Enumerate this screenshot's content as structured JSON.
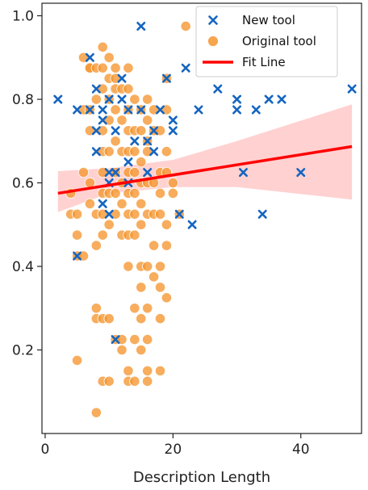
{
  "chart_data": {
    "type": "scatter",
    "title": "",
    "xlabel": "Description Length",
    "ylabel": "",
    "xlim": [
      -0.5,
      49.5
    ],
    "ylim": [
      0.0,
      1.03
    ],
    "xticks": [
      0,
      20,
      40
    ],
    "yticks": [
      0.2,
      0.4,
      0.6,
      0.8,
      1.0
    ],
    "grid": false,
    "legend_position": "top-right",
    "colors": {
      "new_tool": "#1565C0",
      "original_tool": "#F5962F",
      "fit_line": "#FF0000",
      "ci_band": "#FFB3B3"
    },
    "series": [
      {
        "name": "New tool",
        "marker": "x",
        "points": [
          [
            2,
            0.8
          ],
          [
            5,
            0.775
          ],
          [
            7,
            0.9
          ],
          [
            7,
            0.775
          ],
          [
            8,
            0.825
          ],
          [
            8,
            0.725
          ],
          [
            9,
            0.75
          ],
          [
            10,
            0.8
          ],
          [
            9,
            0.775
          ],
          [
            8,
            0.675
          ],
          [
            10,
            0.625
          ],
          [
            10,
            0.6
          ],
          [
            11,
            0.625
          ],
          [
            9,
            0.55
          ],
          [
            10,
            0.525
          ],
          [
            11,
            0.725
          ],
          [
            12,
            0.8
          ],
          [
            12,
            0.85
          ],
          [
            13,
            0.775
          ],
          [
            13,
            0.65
          ],
          [
            13,
            0.6
          ],
          [
            14,
            0.7
          ],
          [
            15,
            0.975
          ],
          [
            15,
            0.775
          ],
          [
            16,
            0.7
          ],
          [
            16,
            0.625
          ],
          [
            17,
            0.725
          ],
          [
            17,
            0.675
          ],
          [
            18,
            0.775
          ],
          [
            19,
            0.85
          ],
          [
            20,
            0.725
          ],
          [
            20,
            0.75
          ],
          [
            21,
            0.525
          ],
          [
            22,
            0.875
          ],
          [
            23,
            0.5
          ],
          [
            24,
            0.775
          ],
          [
            27,
            0.825
          ],
          [
            30,
            0.8
          ],
          [
            30,
            0.775
          ],
          [
            31,
            0.625
          ],
          [
            33,
            0.775
          ],
          [
            34,
            0.525
          ],
          [
            35,
            0.8
          ],
          [
            37,
            0.8
          ],
          [
            40,
            0.625
          ],
          [
            48,
            0.825
          ],
          [
            5,
            0.425
          ],
          [
            11,
            0.225
          ]
        ]
      },
      {
        "name": "Original tool",
        "marker": "o",
        "points": [
          [
            4,
            0.575
          ],
          [
            4,
            0.525
          ],
          [
            5,
            0.525
          ],
          [
            5,
            0.475
          ],
          [
            5,
            0.425
          ],
          [
            5,
            0.175
          ],
          [
            6,
            0.625
          ],
          [
            6,
            0.775
          ],
          [
            6,
            0.9
          ],
          [
            6,
            0.425
          ],
          [
            7,
            0.875
          ],
          [
            7,
            0.775
          ],
          [
            7,
            0.6
          ],
          [
            7,
            0.55
          ],
          [
            7,
            0.725
          ],
          [
            7,
            0.875
          ],
          [
            8,
            0.875
          ],
          [
            8,
            0.8
          ],
          [
            8,
            0.525
          ],
          [
            8,
            0.45
          ],
          [
            8,
            0.3
          ],
          [
            8,
            0.275
          ],
          [
            8,
            0.05
          ],
          [
            9,
            0.925
          ],
          [
            9,
            0.875
          ],
          [
            9,
            0.825
          ],
          [
            9,
            0.725
          ],
          [
            9,
            0.675
          ],
          [
            9,
            0.625
          ],
          [
            9,
            0.575
          ],
          [
            9,
            0.525
          ],
          [
            9,
            0.275
          ],
          [
            9,
            0.125
          ],
          [
            9,
            0.475
          ],
          [
            10,
            0.9
          ],
          [
            10,
            0.85
          ],
          [
            10,
            0.8
          ],
          [
            10,
            0.75
          ],
          [
            10,
            0.675
          ],
          [
            10,
            0.575
          ],
          [
            10,
            0.5
          ],
          [
            10,
            0.275
          ],
          [
            10,
            0.125
          ],
          [
            11,
            0.875
          ],
          [
            11,
            0.825
          ],
          [
            11,
            0.775
          ],
          [
            11,
            0.7
          ],
          [
            11,
            0.625
          ],
          [
            11,
            0.575
          ],
          [
            11,
            0.525
          ],
          [
            11,
            0.225
          ],
          [
            11,
            0.85
          ],
          [
            12,
            0.825
          ],
          [
            12,
            0.75
          ],
          [
            12,
            0.675
          ],
          [
            12,
            0.6
          ],
          [
            12,
            0.55
          ],
          [
            12,
            0.475
          ],
          [
            12,
            0.225
          ],
          [
            12,
            0.2
          ],
          [
            13,
            0.875
          ],
          [
            13,
            0.825
          ],
          [
            13,
            0.775
          ],
          [
            13,
            0.725
          ],
          [
            13,
            0.675
          ],
          [
            13,
            0.625
          ],
          [
            13,
            0.575
          ],
          [
            13,
            0.525
          ],
          [
            13,
            0.475
          ],
          [
            13,
            0.4
          ],
          [
            13,
            0.15
          ],
          [
            13,
            0.125
          ],
          [
            14,
            0.8
          ],
          [
            14,
            0.725
          ],
          [
            14,
            0.675
          ],
          [
            14,
            0.625
          ],
          [
            14,
            0.575
          ],
          [
            14,
            0.525
          ],
          [
            14,
            0.475
          ],
          [
            14,
            0.3
          ],
          [
            14,
            0.225
          ],
          [
            14,
            0.125
          ],
          [
            15,
            0.775
          ],
          [
            15,
            0.725
          ],
          [
            15,
            0.65
          ],
          [
            15,
            0.6
          ],
          [
            15,
            0.55
          ],
          [
            15,
            0.5
          ],
          [
            15,
            0.4
          ],
          [
            15,
            0.35
          ],
          [
            15,
            0.275
          ],
          [
            15,
            0.2
          ],
          [
            16,
            0.8
          ],
          [
            16,
            0.75
          ],
          [
            16,
            0.7
          ],
          [
            16,
            0.675
          ],
          [
            16,
            0.6
          ],
          [
            16,
            0.525
          ],
          [
            16,
            0.4
          ],
          [
            16,
            0.3
          ],
          [
            16,
            0.225
          ],
          [
            16,
            0.15
          ],
          [
            16,
            0.125
          ],
          [
            17,
            0.775
          ],
          [
            17,
            0.725
          ],
          [
            17,
            0.6
          ],
          [
            17,
            0.525
          ],
          [
            17,
            0.45
          ],
          [
            17,
            0.375
          ],
          [
            18,
            0.725
          ],
          [
            18,
            0.625
          ],
          [
            18,
            0.575
          ],
          [
            18,
            0.525
          ],
          [
            18,
            0.4
          ],
          [
            18,
            0.35
          ],
          [
            18,
            0.275
          ],
          [
            18,
            0.15
          ],
          [
            19,
            0.85
          ],
          [
            19,
            0.775
          ],
          [
            19,
            0.675
          ],
          [
            19,
            0.625
          ],
          [
            19,
            0.5
          ],
          [
            19,
            0.45
          ],
          [
            19,
            0.325
          ],
          [
            20,
            0.6
          ],
          [
            20,
            0.575
          ],
          [
            21,
            0.525
          ],
          [
            22,
            0.975
          ]
        ]
      }
    ],
    "fit_line": {
      "name": "Fit Line",
      "x": [
        2,
        48
      ],
      "y": [
        0.575,
        0.687
      ]
    },
    "confidence_band": {
      "x": [
        2,
        10,
        20,
        30,
        48
      ],
      "upper": [
        0.628,
        0.635,
        0.655,
        0.7,
        0.788
      ],
      "lower": [
        0.53,
        0.575,
        0.59,
        0.59,
        0.56
      ]
    }
  }
}
